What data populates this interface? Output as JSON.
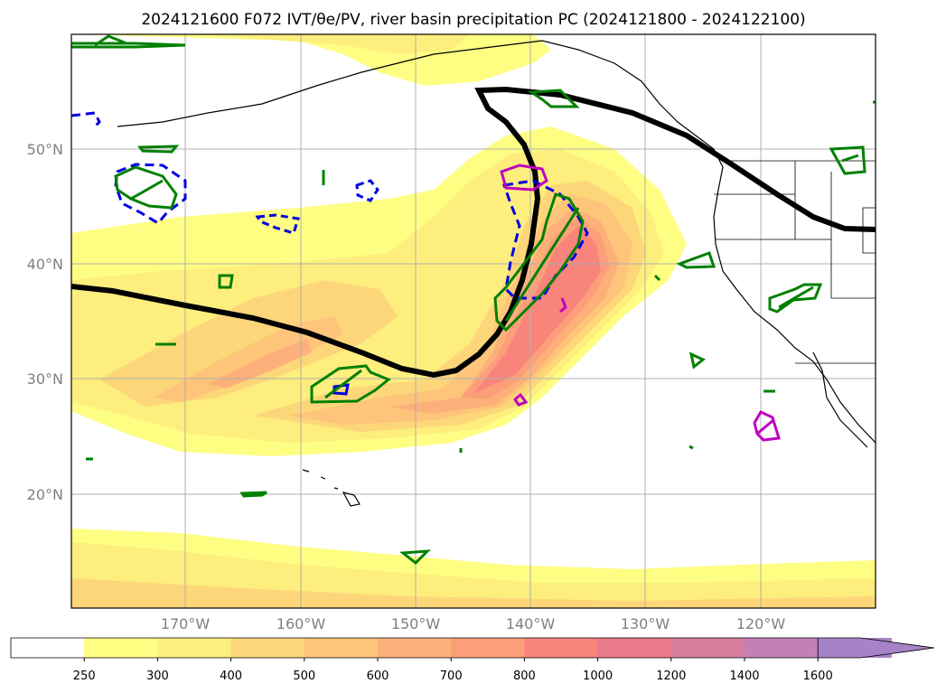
{
  "title": "2024121600 F072 IVT/θe/PV, river basin precipitation PC (2024121800 - 2024122100)",
  "map": {
    "lat_labels": [
      "50°N",
      "40°N",
      "30°N",
      "20°N"
    ],
    "lon_labels": [
      "170°W",
      "160°W",
      "150°W",
      "140°W",
      "130°W",
      "120°W"
    ]
  },
  "colorbar": {
    "levels": [
      "250",
      "300",
      "400",
      "500",
      "600",
      "700",
      "800",
      "1000",
      "1200",
      "1400",
      "1600"
    ],
    "colors": [
      "#ffffff",
      "#fefe82",
      "#fdee7e",
      "#fdd67a",
      "#fdc47a",
      "#fdb07a",
      "#fc9e79",
      "#f8847b",
      "#e97a8a",
      "#d57e9e",
      "#c280b6",
      "#a882c8"
    ]
  }
}
